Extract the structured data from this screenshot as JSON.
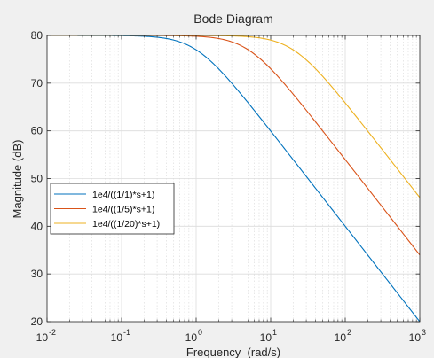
{
  "chart_data": {
    "type": "line",
    "title": "Bode Diagram",
    "xlabel": "Frequency  (rad/s)",
    "ylabel": "Magnitude (dB)",
    "x_scale": "log",
    "xlim": [
      0.01,
      1000
    ],
    "ylim": [
      20,
      80
    ],
    "x_ticks": [
      {
        "value": 0.01,
        "base": "10",
        "exp": "-2"
      },
      {
        "value": 0.1,
        "base": "10",
        "exp": "-1"
      },
      {
        "value": 1,
        "base": "10",
        "exp": "0"
      },
      {
        "value": 10,
        "base": "10",
        "exp": "1"
      },
      {
        "value": 100,
        "base": "10",
        "exp": "2"
      },
      {
        "value": 1000,
        "base": "10",
        "exp": "3"
      }
    ],
    "y_ticks": [
      "20",
      "30",
      "40",
      "50",
      "60",
      "70",
      "80"
    ],
    "grid": true,
    "minor_grid": true,
    "legend_position": "left",
    "series": [
      {
        "name": "1e4/((1/1)*s+1)",
        "gain_db": 80,
        "corner": 1,
        "color": "#0072bd",
        "x": [
          0.01,
          0.1,
          1,
          10,
          100,
          1000
        ],
        "y": [
          80,
          79.96,
          76.99,
          59.96,
          40,
          20
        ]
      },
      {
        "name": "1e4/((1/5)*s+1)",
        "gain_db": 80,
        "corner": 5,
        "color": "#d95319",
        "x": [
          0.01,
          0.1,
          1,
          5,
          10,
          100,
          1000
        ],
        "y": [
          80,
          80,
          79.83,
          76.99,
          73.01,
          54,
          34
        ]
      },
      {
        "name": "1e4/((1/20)*s+1)",
        "gain_db": 80,
        "corner": 20,
        "color": "#edb120",
        "x": [
          0.01,
          0.1,
          1,
          10,
          20,
          100,
          1000
        ],
        "y": [
          80,
          80,
          79.99,
          79.03,
          76.99,
          65.85,
          46.02
        ]
      }
    ]
  }
}
